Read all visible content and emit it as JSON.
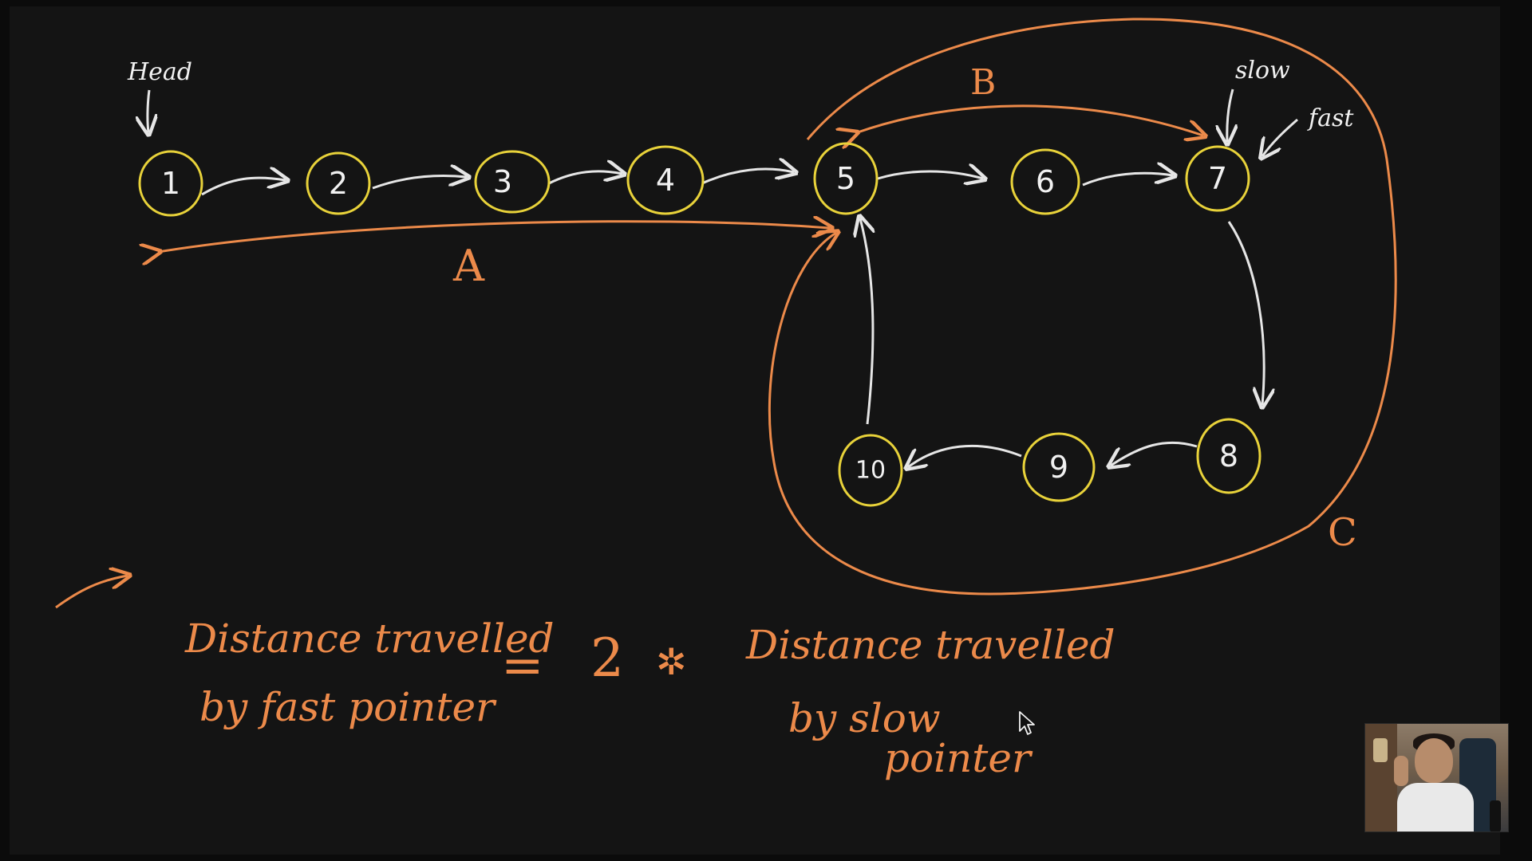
{
  "nodes": [
    {
      "label": "1"
    },
    {
      "label": "2"
    },
    {
      "label": "3"
    },
    {
      "label": "4"
    },
    {
      "label": "5"
    },
    {
      "label": "6"
    },
    {
      "label": "7"
    },
    {
      "label": "8"
    },
    {
      "label": "9"
    },
    {
      "label": "10"
    }
  ],
  "annotations": {
    "head": "Head",
    "slow": "slow",
    "fast": "fast",
    "segment_a": "A",
    "segment_b": "B",
    "segment_c": "C"
  },
  "equation": {
    "left_line1": "Distance travelled",
    "left_line2": "by fast pointer",
    "equals": "=",
    "factor": "2",
    "times": "✲",
    "right_line1": "Distance travelled",
    "right_line2": "by slow",
    "right_line3": "pointer"
  },
  "colors": {
    "node_stroke": "#e8d23a",
    "arrow": "#e6e6e6",
    "annotation": "#ec8a4a",
    "board": "#141414"
  },
  "icons": {
    "cursor": "mouse-pointer-icon",
    "webcam": "presenter-webcam-thumbnail"
  }
}
